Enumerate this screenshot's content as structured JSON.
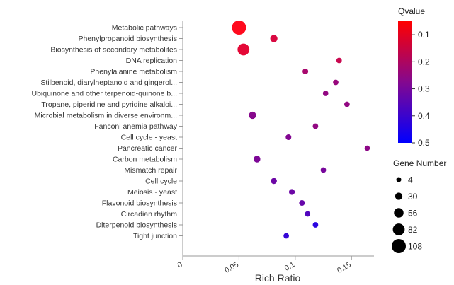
{
  "chart_data": {
    "type": "scatter",
    "xlabel": "Rich Ratio",
    "ylabel": "",
    "xlim": [
      0,
      0.17
    ],
    "x_ticks": [
      "0",
      "0.05",
      "0.1",
      "0.15"
    ],
    "x_tick_values": [
      0,
      0.05,
      0.1,
      0.15
    ],
    "categories": [
      "Metabolic pathways",
      "Phenylpropanoid biosynthesis",
      "Biosynthesis of secondary metabolites",
      "DNA replication",
      "Phenylalanine metabolism",
      "Stilbenoid, diarylheptanoid and gingerol...",
      "Ubiquinone and other terpenoid-quinone b...",
      "Tropane, piperidine and pyridine alkaloi...",
      "Microbial metabolism in diverse environm...",
      "Fanconi anemia pathway",
      "Cell cycle - yeast",
      "Pancreatic cancer",
      "Carbon metabolism",
      "Mismatch repair",
      "Cell cycle",
      "Meiosis - yeast",
      "Flavonoid biosynthesis",
      "Circadian rhythm",
      "Diterpenoid biosynthesis",
      "Tight junction"
    ],
    "points": [
      {
        "category": "Metabolic pathways",
        "x": 0.05,
        "qvalue": 0.05,
        "gene_number": 108
      },
      {
        "category": "Phenylpropanoid biosynthesis",
        "x": 0.081,
        "qvalue": 0.12,
        "gene_number": 30
      },
      {
        "category": "Biosynthesis of secondary metabolites",
        "x": 0.054,
        "qvalue": 0.1,
        "gene_number": 82
      },
      {
        "category": "DNA replication",
        "x": 0.139,
        "qvalue": 0.15,
        "gene_number": 10
      },
      {
        "category": "Phenylalanine metabolism",
        "x": 0.109,
        "qvalue": 0.21,
        "gene_number": 12
      },
      {
        "category": "Stilbenoid, diarylheptanoid and gingerol...",
        "x": 0.136,
        "qvalue": 0.24,
        "gene_number": 10
      },
      {
        "category": "Ubiquinone and other terpenoid-quinone b...",
        "x": 0.127,
        "qvalue": 0.25,
        "gene_number": 10
      },
      {
        "category": "Tropane, piperidine and pyridine alkaloi...",
        "x": 0.146,
        "qvalue": 0.25,
        "gene_number": 10
      },
      {
        "category": "Microbial metabolism in diverse environm...",
        "x": 0.062,
        "qvalue": 0.27,
        "gene_number": 30
      },
      {
        "category": "Fanconi anemia pathway",
        "x": 0.118,
        "qvalue": 0.25,
        "gene_number": 10
      },
      {
        "category": "Cell cycle - yeast",
        "x": 0.094,
        "qvalue": 0.28,
        "gene_number": 12
      },
      {
        "category": "Pancreatic cancer",
        "x": 0.164,
        "qvalue": 0.26,
        "gene_number": 8
      },
      {
        "category": "Carbon metabolism",
        "x": 0.066,
        "qvalue": 0.29,
        "gene_number": 24
      },
      {
        "category": "Mismatch repair",
        "x": 0.125,
        "qvalue": 0.3,
        "gene_number": 10
      },
      {
        "category": "Cell cycle",
        "x": 0.081,
        "qvalue": 0.32,
        "gene_number": 16
      },
      {
        "category": "Meiosis - yeast",
        "x": 0.097,
        "qvalue": 0.32,
        "gene_number": 14
      },
      {
        "category": "Flavonoid biosynthesis",
        "x": 0.106,
        "qvalue": 0.33,
        "gene_number": 12
      },
      {
        "category": "Circadian rhythm",
        "x": 0.111,
        "qvalue": 0.37,
        "gene_number": 10
      },
      {
        "category": "Diterpenoid biosynthesis",
        "x": 0.118,
        "qvalue": 0.44,
        "gene_number": 10
      },
      {
        "category": "Tight junction",
        "x": 0.092,
        "qvalue": 0.42,
        "gene_number": 10
      }
    ],
    "color_legend": {
      "title": "Qvalue",
      "min": 0.05,
      "max": 0.5,
      "ticks": [
        "0.1",
        "0.2",
        "0.3",
        "0.4",
        "0.5"
      ],
      "tick_values": [
        0.1,
        0.2,
        0.3,
        0.4,
        0.5
      ],
      "color_low": "#ff0000",
      "color_high": "#0000ff"
    },
    "size_legend": {
      "title": "Gene Number",
      "labels": [
        "4",
        "30",
        "56",
        "82",
        "108"
      ],
      "values": [
        4,
        30,
        56,
        82,
        108
      ]
    },
    "grid": false,
    "legend_placement": "right"
  }
}
